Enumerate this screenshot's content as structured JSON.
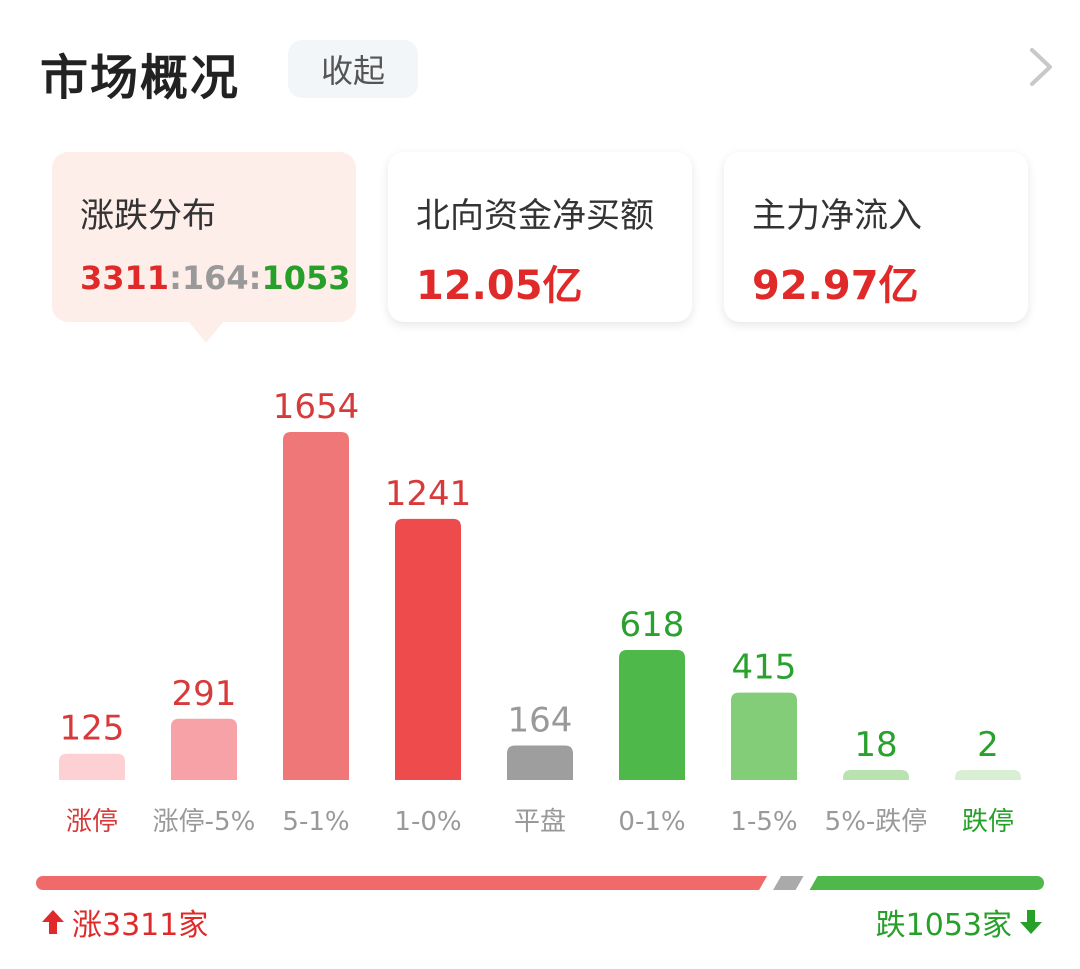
{
  "header": {
    "title": "市场概况",
    "collapse_label": "收起"
  },
  "cards": [
    {
      "label": "涨跌分布",
      "up": "3311",
      "flat": "164",
      "down": "1053",
      "sep": ":"
    },
    {
      "label": "北向资金净买额",
      "value": "12.05亿"
    },
    {
      "label": "主力净流入",
      "value": "92.97亿"
    }
  ],
  "chart_data": {
    "type": "bar",
    "categories": [
      "涨停",
      "涨停-5%",
      "5-1%",
      "1-0%",
      "平盘",
      "0-1%",
      "1-5%",
      "5%-跌停",
      "跌停"
    ],
    "values": [
      125,
      291,
      1654,
      1241,
      164,
      618,
      415,
      18,
      2
    ],
    "bar_colors": [
      "#fdd0d3",
      "#f7a2a7",
      "#f07777",
      "#ee4c4c",
      "#9e9e9e",
      "#4fb84a",
      "#83cc78",
      "#b8e2b0",
      "#d8efd3"
    ],
    "value_label_colors": [
      "#d73a3a",
      "#d73a3a",
      "#d73a3a",
      "#d73a3a",
      "#999999",
      "#2aa12e",
      "#2aa12e",
      "#2aa12e",
      "#2aa12e"
    ],
    "category_label_colors": [
      "#d73a3a",
      "#999999",
      "#999999",
      "#999999",
      "#999999",
      "#999999",
      "#999999",
      "#999999",
      "#27a02a"
    ],
    "grid": false,
    "legend": "none"
  },
  "summary": {
    "up_total": 3311,
    "flat_total": 164,
    "down_total": 1053,
    "up_text": "涨3311家",
    "down_text": "跌1053家"
  },
  "colors": {
    "up": "#e02a2a",
    "down": "#27a02a",
    "flat": "#aaaaaa",
    "up_bar": "#f06a6a",
    "down_bar": "#4fb84a"
  },
  "icons": {
    "chevron": "chevron-right-icon",
    "up_arrow": "arrow-up-icon",
    "down_arrow": "arrow-down-icon"
  }
}
